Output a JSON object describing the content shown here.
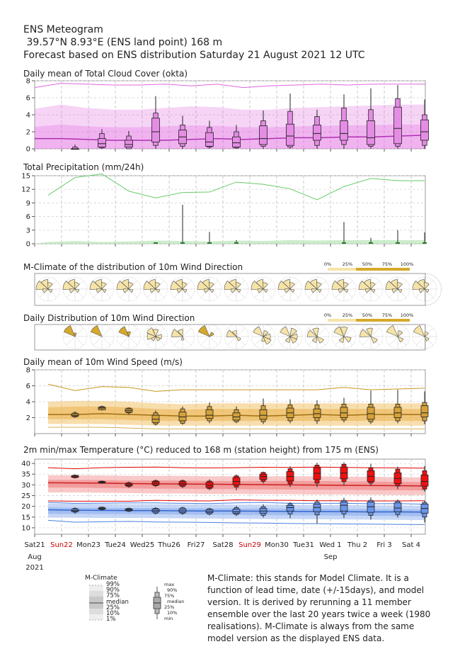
{
  "header": {
    "line1": "ENS Meteogram",
    "line2": " 39.57°N 8.93°E (ENS land point) 168 m",
    "line3": "Forecast based on ENS distribution Saturday 21 August 2021 12 UTC"
  },
  "panels": {
    "cloud": "Daily mean of Total Cloud Cover (okta)",
    "precip": "Total Precipitation (mm/24h)",
    "mclimate_dir": "M-Climate of the distribution of 10m Wind Direction",
    "daily_dir": "Daily Distribution of 10m Wind Direction",
    "wind": "Daily mean of 10m Wind Speed (m/s)",
    "temp": "2m min/max Temperature (°C) reduced to 168 m (station height) from 175 m (ENS)"
  },
  "percent_legend": [
    "0%",
    "25%",
    "50%",
    "75%",
    "100%"
  ],
  "x_axis": {
    "days": [
      "Sat21",
      "Sun22",
      "Mon23",
      "Tue24",
      "Wed25",
      "Thu26",
      "Fri27",
      "Sat28",
      "Sun29",
      "Mon30",
      "Tue31",
      "Wed 1",
      "Thu 2",
      "Fri 3",
      "Sat 4"
    ],
    "weekend_color": "#cc0000",
    "red_days": [
      1,
      8
    ],
    "month1": "Aug",
    "year": "2021",
    "month2": "Sep"
  },
  "legend": {
    "mclimate_title": "M-Climate",
    "mclimate_labels": [
      "99%",
      "90%",
      "75%",
      "median",
      "25%",
      "10%",
      "1%"
    ],
    "box_labels": [
      "max",
      "90%",
      "75%",
      "median",
      "25%",
      "10%",
      "min"
    ]
  },
  "note": "M-Climate: this stands for Model Climate. It is a function of lead time, date (+/-15days), and model version. It is derived by rerunning a 11 member ensemble over the last 20 years twice a week (1980 realisations). M-Climate is always from the same model version as the displayed ENS data.",
  "colors": {
    "cloud": "#e066e0",
    "precip": "#55aa55",
    "wind": "#c8961e",
    "tmax": "#e00000",
    "tmin": "#4a7fe0",
    "rose": "#f5e3a8",
    "rose_dark": "#d6a92a"
  },
  "chart_data": [
    {
      "type": "box",
      "title": "Daily mean of Total Cloud Cover (okta)",
      "ylim": [
        0,
        8
      ],
      "yticks": [
        0,
        2,
        4,
        6,
        8
      ],
      "climate_99": [
        7.2,
        7.7,
        7.6,
        7.5,
        7.5,
        7.6,
        7.4,
        7.6,
        7.2,
        7.4,
        7.5,
        7.6,
        7.5,
        7.6,
        7.6,
        7.6
      ],
      "climate_band_upper": [
        4.7,
        5.2,
        4.8,
        4.6,
        4.6,
        4.8,
        5.0,
        4.9,
        4.6,
        4.6,
        4.8,
        4.9,
        5.0,
        5.1,
        5.2,
        5.2
      ],
      "climate_median": [
        1.2,
        1.2,
        1.1,
        1.0,
        1.0,
        1.0,
        1.1,
        1.2,
        1.1,
        1.2,
        1.3,
        1.3,
        1.4,
        1.4,
        1.5,
        1.6
      ],
      "boxes": [
        {
          "min": 0,
          "p10": 0,
          "p25": 0,
          "median": 0,
          "p75": 0,
          "p90": 0.2,
          "max": 0.5
        },
        {
          "min": 0,
          "p10": 0.1,
          "p25": 0.2,
          "median": 0.6,
          "p75": 1.2,
          "p90": 1.8,
          "max": 2.3
        },
        {
          "min": 0,
          "p10": 0,
          "p25": 0.2,
          "median": 0.5,
          "p75": 1.0,
          "p90": 1.5,
          "max": 2.1
        },
        {
          "min": 0,
          "p10": 0.4,
          "p25": 0.8,
          "median": 2.0,
          "p75": 3.6,
          "p90": 4.2,
          "max": 6.2
        },
        {
          "min": 0,
          "p10": 0.3,
          "p25": 0.6,
          "median": 1.4,
          "p75": 2.2,
          "p90": 2.8,
          "max": 3.9
        },
        {
          "min": 0,
          "p10": 0.2,
          "p25": 0.3,
          "median": 0.8,
          "p75": 1.9,
          "p90": 2.5,
          "max": 3.3
        },
        {
          "min": 0,
          "p10": 0.1,
          "p25": 0.2,
          "median": 0.7,
          "p75": 1.4,
          "p90": 2.0,
          "max": 2.8
        },
        {
          "min": 0,
          "p10": 0.3,
          "p25": 0.5,
          "median": 1.2,
          "p75": 2.7,
          "p90": 3.3,
          "max": 4.5
        },
        {
          "min": 0,
          "p10": 0.2,
          "p25": 0.4,
          "median": 1.5,
          "p75": 2.9,
          "p90": 4.4,
          "max": 6.5
        },
        {
          "min": 0,
          "p10": 0.4,
          "p25": 1.0,
          "median": 1.8,
          "p75": 2.8,
          "p90": 3.8,
          "max": 4.6
        },
        {
          "min": 0,
          "p10": 0.5,
          "p25": 1.0,
          "median": 1.8,
          "p75": 3.3,
          "p90": 4.8,
          "max": 6.4
        },
        {
          "min": 0,
          "p10": 0.3,
          "p25": 0.5,
          "median": 1.3,
          "p75": 3.3,
          "p90": 4.6,
          "max": 7.1
        },
        {
          "min": 0,
          "p10": 0.3,
          "p25": 0.6,
          "median": 2.4,
          "p75": 4.9,
          "p90": 5.9,
          "max": 7.5
        },
        {
          "min": 0,
          "p10": 0.4,
          "p25": 1.0,
          "median": 2.0,
          "p75": 3.4,
          "p90": 4.0,
          "max": 5.8
        }
      ]
    },
    {
      "type": "bar",
      "title": "Total Precipitation (mm/24h)",
      "ylim": [
        0,
        15
      ],
      "yticks": [
        0,
        3,
        6,
        9,
        12,
        15
      ],
      "climate_99": [
        10.7,
        14.6,
        15.4,
        11.6,
        10.1,
        11.3,
        11.4,
        13.6,
        13.1,
        12.1,
        9.7,
        12.6,
        14.4,
        13.9,
        13.9
      ],
      "climate_90": [
        0.4,
        0.6,
        0.4,
        0.5,
        0.7,
        0.6,
        0.5,
        0.7,
        0.6,
        0.8,
        0.7,
        0.8,
        0.8,
        0.8,
        0.8
      ],
      "members_max": [
        0,
        0,
        0,
        0,
        0.2,
        8.6,
        2.6,
        0.8,
        0,
        0,
        0,
        4.8,
        1.3,
        3.0,
        2.5
      ]
    },
    {
      "type": "box",
      "title": "Daily mean of 10m Wind Speed (m/s)",
      "ylim": [
        0,
        8
      ],
      "yticks": [
        2,
        4,
        6,
        8
      ],
      "climate_99": [
        6.2,
        5.4,
        5.9,
        5.8,
        5.3,
        5.5,
        5.5,
        5.5,
        5.5,
        5.5,
        5.5,
        5.8,
        5.5,
        5.6,
        5.7
      ],
      "climate_band": [
        [
          1.2,
          4.0
        ],
        [
          1.2,
          4.1
        ],
        [
          1.2,
          4.1
        ],
        [
          1.1,
          4.0
        ],
        [
          1.0,
          3.8
        ],
        [
          1.0,
          3.7
        ],
        [
          1.0,
          3.8
        ],
        [
          1.0,
          3.8
        ],
        [
          1.0,
          3.8
        ],
        [
          1.0,
          3.8
        ],
        [
          1.0,
          3.8
        ],
        [
          1.0,
          3.8
        ],
        [
          1.0,
          3.8
        ],
        [
          1.0,
          3.8
        ],
        [
          1.0,
          3.8
        ]
      ],
      "climate_median": [
        2.4,
        2.4,
        2.5,
        2.4,
        2.3,
        2.2,
        2.2,
        2.3,
        2.2,
        2.3,
        2.4,
        2.3,
        2.4,
        2.4,
        2.4
      ],
      "boxes": [
        {
          "min": 2.0,
          "p10": 2.1,
          "p25": 2.2,
          "median": 2.3,
          "p75": 2.5,
          "p90": 2.6,
          "max": 2.8
        },
        {
          "min": 2.9,
          "p10": 3.0,
          "p25": 3.0,
          "median": 3.2,
          "p75": 3.3,
          "p90": 3.4,
          "max": 3.5
        },
        {
          "min": 2.4,
          "p10": 2.6,
          "p25": 2.7,
          "median": 2.9,
          "p75": 3.1,
          "p90": 3.2,
          "max": 3.3
        },
        {
          "min": 1.0,
          "p10": 1.2,
          "p25": 1.4,
          "median": 1.8,
          "p75": 2.3,
          "p90": 2.6,
          "max": 2.9
        },
        {
          "min": 1.1,
          "p10": 1.3,
          "p25": 1.6,
          "median": 2.1,
          "p75": 2.7,
          "p90": 3.1,
          "max": 3.4
        },
        {
          "min": 1.3,
          "p10": 1.6,
          "p25": 1.9,
          "median": 2.3,
          "p75": 3.0,
          "p90": 3.4,
          "max": 3.9
        },
        {
          "min": 1.3,
          "p10": 1.5,
          "p25": 1.7,
          "median": 2.1,
          "p75": 2.6,
          "p90": 3.0,
          "max": 3.4
        },
        {
          "min": 1.2,
          "p10": 1.5,
          "p25": 1.8,
          "median": 2.3,
          "p75": 3.0,
          "p90": 3.5,
          "max": 4.4
        },
        {
          "min": 1.3,
          "p10": 1.6,
          "p25": 2.0,
          "median": 2.6,
          "p75": 3.2,
          "p90": 3.6,
          "max": 4.3
        },
        {
          "min": 1.2,
          "p10": 1.6,
          "p25": 2.0,
          "median": 2.5,
          "p75": 3.1,
          "p90": 3.6,
          "max": 4.2
        },
        {
          "min": 1.4,
          "p10": 1.7,
          "p25": 2.0,
          "median": 2.6,
          "p75": 3.3,
          "p90": 3.7,
          "max": 4.5
        },
        {
          "min": 1.2,
          "p10": 1.5,
          "p25": 1.8,
          "median": 2.5,
          "p75": 3.3,
          "p90": 3.7,
          "max": 5.4
        },
        {
          "min": 1.3,
          "p10": 1.6,
          "p25": 2.0,
          "median": 2.6,
          "p75": 3.3,
          "p90": 3.7,
          "max": 5.5
        },
        {
          "min": 1.2,
          "p10": 1.6,
          "p25": 2.1,
          "median": 2.6,
          "p75": 3.5,
          "p90": 3.9,
          "max": 5.3
        }
      ]
    },
    {
      "type": "box",
      "title": "2m min/max Temperature (°C) reduced to 168 m (station height) from 175 m (ENS)",
      "ylim": [
        7,
        42
      ],
      "yticks": [
        10,
        15,
        20,
        25,
        30,
        35,
        40
      ],
      "tmax_climate_99": [
        38.0,
        37.5,
        38.0,
        38.2,
        38.3,
        38.0,
        37.9,
        38.0,
        38.2,
        38.1,
        38.3,
        38.1,
        38.0,
        37.9,
        37.8
      ],
      "tmax_band": [
        [
          26.5,
          34.5
        ],
        [
          26.5,
          34.5
        ],
        [
          26.3,
          34.4
        ],
        [
          26.2,
          34.2
        ],
        [
          26.0,
          34.2
        ],
        [
          26.0,
          34.2
        ],
        [
          25.8,
          34.0
        ],
        [
          25.8,
          34.0
        ],
        [
          25.7,
          34.0
        ],
        [
          25.6,
          34.0
        ],
        [
          25.5,
          34.0
        ],
        [
          25.5,
          33.8
        ],
        [
          25.4,
          33.8
        ],
        [
          25.3,
          33.6
        ],
        [
          25.2,
          33.5
        ]
      ],
      "tmax_median": [
        31.0,
        30.9,
        30.8,
        30.6,
        30.5,
        30.4,
        30.3,
        30.2,
        30.1,
        30.0,
        29.9,
        29.8,
        29.7,
        29.6,
        29.5
      ],
      "tmax_climate_1": [
        22.5,
        22.4,
        22.4,
        22.4,
        22.8,
        22.6,
        22.5,
        23.0,
        22.8,
        22.8,
        22.6,
        22.6,
        22.5,
        22.5,
        22.6
      ],
      "tmin_climate_99": [
        21.8,
        21.4,
        21.5,
        21.6,
        21.6,
        21.4,
        21.3,
        21.6,
        21.8,
        21.4,
        21.4,
        21.4,
        21.2,
        21.3,
        21.0
      ],
      "tmin_band": [
        [
          14.7,
          21.3
        ],
        [
          14.7,
          21.2
        ],
        [
          14.6,
          21.1
        ],
        [
          14.6,
          21.0
        ],
        [
          14.5,
          21.0
        ],
        [
          14.4,
          20.9
        ],
        [
          14.3,
          20.9
        ],
        [
          14.2,
          20.8
        ],
        [
          14.1,
          20.8
        ],
        [
          14.0,
          20.7
        ],
        [
          14.0,
          20.7
        ],
        [
          13.9,
          20.6
        ],
        [
          13.8,
          20.5
        ],
        [
          13.7,
          20.4
        ],
        [
          13.6,
          20.3
        ]
      ],
      "tmin_median": [
        18.4,
        18.2,
        18.1,
        18.0,
        18.0,
        17.9,
        17.8,
        17.8,
        17.7,
        17.6,
        17.6,
        17.5,
        17.4,
        17.4,
        17.3
      ],
      "tmin_climate_1": [
        13.5,
        12.6,
        12.8,
        13.0,
        12.7,
        12.6,
        12.5,
        12.3,
        12.2,
        12.0,
        11.9,
        11.8,
        11.7,
        11.6,
        11.5
      ],
      "tmax_boxes": [
        {
          "min": 33.0,
          "p10": 33.3,
          "p25": 33.5,
          "median": 34.0,
          "p75": 34.3,
          "p90": 34.5,
          "max": 34.8
        },
        {
          "min": 30.6,
          "p10": 30.8,
          "p25": 31.0,
          "median": 31.2,
          "p75": 31.5,
          "p90": 31.7,
          "max": 32.0
        },
        {
          "min": 28.6,
          "p10": 29.2,
          "p25": 29.6,
          "median": 30.1,
          "p75": 30.7,
          "p90": 31.0,
          "max": 31.5
        },
        {
          "min": 29.0,
          "p10": 29.6,
          "p25": 30.0,
          "median": 30.8,
          "p75": 31.6,
          "p90": 32.0,
          "max": 32.5
        },
        {
          "min": 28.5,
          "p10": 29.2,
          "p25": 29.8,
          "median": 30.5,
          "p75": 31.5,
          "p90": 32.0,
          "max": 32.5
        },
        {
          "min": 27.5,
          "p10": 28.2,
          "p25": 28.8,
          "median": 29.8,
          "p75": 31.2,
          "p90": 31.8,
          "max": 32.6
        },
        {
          "min": 27.5,
          "p10": 29.0,
          "p25": 30.0,
          "median": 31.6,
          "p75": 33.4,
          "p90": 34.2,
          "max": 34.8
        },
        {
          "min": 30.6,
          "p10": 31.6,
          "p25": 32.5,
          "median": 33.9,
          "p75": 35.0,
          "p90": 35.8,
          "max": 36.2
        },
        {
          "min": 29.0,
          "p10": 30.5,
          "p25": 31.8,
          "median": 33.9,
          "p75": 36.2,
          "p90": 37.5,
          "max": 38.6
        },
        {
          "min": 29.0,
          "p10": 30.8,
          "p25": 32.5,
          "median": 35.4,
          "p75": 38.0,
          "p90": 39.2,
          "max": 40.3
        },
        {
          "min": 30.0,
          "p10": 31.5,
          "p25": 32.8,
          "median": 35.5,
          "p75": 38.3,
          "p90": 39.6,
          "max": 40.5
        },
        {
          "min": 29.5,
          "p10": 30.8,
          "p25": 31.6,
          "median": 34.0,
          "p75": 36.6,
          "p90": 38.0,
          "max": 39.8
        },
        {
          "min": 28.0,
          "p10": 29.5,
          "p25": 30.6,
          "median": 33.0,
          "p75": 35.6,
          "p90": 37.3,
          "max": 38.5
        },
        {
          "min": 26.8,
          "p10": 28.0,
          "p25": 29.4,
          "median": 31.6,
          "p75": 34.6,
          "p90": 36.6,
          "max": 38.8
        }
      ],
      "tmin_boxes": [
        {
          "min": 16.5,
          "p10": 17.3,
          "p25": 17.6,
          "median": 18.0,
          "p75": 18.6,
          "p90": 19.0,
          "max": 19.5
        },
        {
          "min": 18.2,
          "p10": 18.5,
          "p25": 18.7,
          "median": 19.0,
          "p75": 19.3,
          "p90": 19.6,
          "max": 19.8
        },
        {
          "min": 17.3,
          "p10": 17.7,
          "p25": 18.1,
          "median": 18.4,
          "p75": 18.8,
          "p90": 19.1,
          "max": 19.4
        },
        {
          "min": 16.2,
          "p10": 16.8,
          "p25": 17.4,
          "median": 18.0,
          "p75": 18.7,
          "p90": 19.1,
          "max": 19.6
        },
        {
          "min": 16.0,
          "p10": 16.7,
          "p25": 17.2,
          "median": 17.9,
          "p75": 18.8,
          "p90": 19.3,
          "max": 19.8
        },
        {
          "min": 15.8,
          "p10": 16.4,
          "p25": 17.0,
          "median": 17.6,
          "p75": 18.4,
          "p90": 18.9,
          "max": 19.3
        },
        {
          "min": 15.5,
          "p10": 16.2,
          "p25": 16.8,
          "median": 17.5,
          "p75": 18.7,
          "p90": 19.4,
          "max": 20.2
        },
        {
          "min": 14.8,
          "p10": 15.8,
          "p25": 16.8,
          "median": 17.8,
          "p75": 19.0,
          "p90": 19.8,
          "max": 21.0
        },
        {
          "min": 14.5,
          "p10": 16.5,
          "p25": 17.8,
          "median": 19.4,
          "p75": 20.4,
          "p90": 21.2,
          "max": 22.0
        },
        {
          "min": 12.0,
          "p10": 16.0,
          "p25": 17.5,
          "median": 19.5,
          "p75": 21.0,
          "p90": 22.0,
          "max": 23.2
        },
        {
          "min": 14.6,
          "p10": 16.5,
          "p25": 17.8,
          "median": 20.5,
          "p75": 22.0,
          "p90": 22.8,
          "max": 24.0
        },
        {
          "min": 13.8,
          "p10": 15.8,
          "p25": 17.2,
          "median": 19.8,
          "p75": 22.0,
          "p90": 22.8,
          "max": 24.2
        },
        {
          "min": 14.8,
          "p10": 16.2,
          "p25": 17.5,
          "median": 19.2,
          "p75": 21.6,
          "p90": 22.4,
          "max": 23.2
        },
        {
          "min": 12.5,
          "p10": 15.0,
          "p25": 16.8,
          "median": 19.0,
          "p75": 21.0,
          "p90": 21.8,
          "max": 22.6
        }
      ]
    }
  ]
}
